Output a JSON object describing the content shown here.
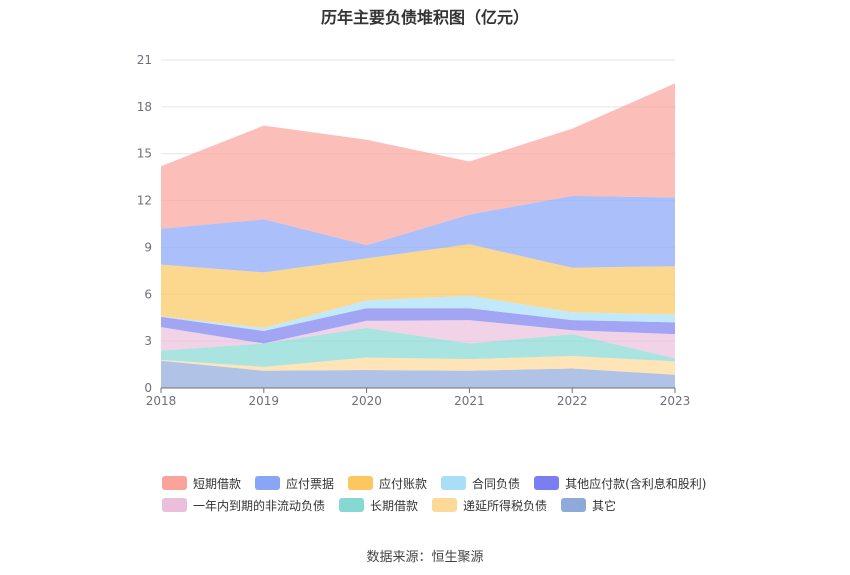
{
  "title": "历年主要负债堆积图（亿元）",
  "source": "数据来源：恒生聚源",
  "chart_data": {
    "type": "area",
    "stacked": true,
    "title": "历年主要负债堆积图（亿元）",
    "x": [
      "2018",
      "2019",
      "2020",
      "2021",
      "2022",
      "2023"
    ],
    "ylim": [
      0,
      21
    ],
    "yticks": [
      0,
      3,
      6,
      9,
      12,
      15,
      18,
      21
    ],
    "grid": true,
    "legend_position": "bottom",
    "series": [
      {
        "name": "其它",
        "color": "#8eaadb",
        "values": [
          1.75,
          1.1,
          1.15,
          1.1,
          1.25,
          0.85
        ]
      },
      {
        "name": "递延所得税负债",
        "color": "#fdd898",
        "values": [
          0.05,
          0.25,
          0.8,
          0.75,
          0.8,
          0.85
        ]
      },
      {
        "name": "长期借款",
        "color": "#86d8d3",
        "values": [
          0.6,
          1.5,
          1.9,
          1.0,
          1.4,
          0.2
        ]
      },
      {
        "name": "一年内到期的非流动负债",
        "color": "#ebbfdc",
        "values": [
          1.5,
          0.0,
          0.45,
          1.5,
          0.25,
          1.55
        ]
      },
      {
        "name": "其他应付款(含利息和股利)",
        "color": "#7b7ef0",
        "values": [
          0.65,
          0.8,
          0.8,
          0.75,
          0.65,
          0.75
        ]
      },
      {
        "name": "合同负债",
        "color": "#a8dff7",
        "values": [
          0.05,
          0.2,
          0.5,
          0.8,
          0.5,
          0.5
        ]
      },
      {
        "name": "应付账款",
        "color": "#fbc75e",
        "values": [
          3.3,
          3.55,
          2.7,
          3.3,
          2.85,
          3.1
        ]
      },
      {
        "name": "应付票据",
        "color": "#88a5f8",
        "values": [
          2.3,
          3.4,
          0.85,
          1.9,
          4.6,
          4.4
        ]
      },
      {
        "name": "短期借款",
        "color": "#f9a39b",
        "values": [
          4.0,
          6.0,
          6.75,
          3.4,
          4.3,
          7.3
        ]
      }
    ],
    "legend": [
      [
        "短期借款",
        "应付票据",
        "应付账款",
        "合同负债",
        "其他应付款(含利息和股利)"
      ],
      [
        "一年内到期的非流动负债",
        "长期借款",
        "递延所得税负债",
        "其它"
      ]
    ]
  }
}
